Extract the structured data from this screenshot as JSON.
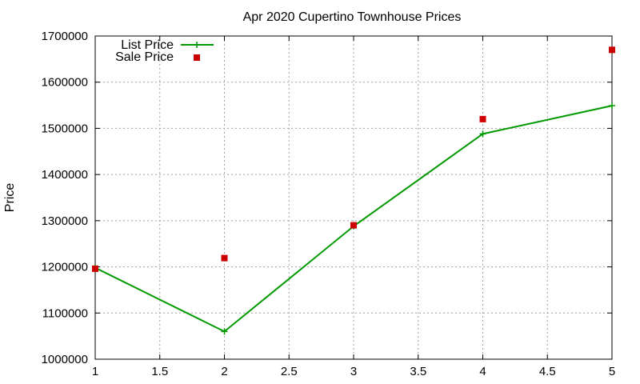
{
  "chart_data": {
    "type": "line",
    "title": "Apr 2020 Cupertino Townhouse Prices",
    "xlabel": "",
    "ylabel": "Price",
    "xlim": [
      1,
      5
    ],
    "ylim": [
      1000000,
      1700000
    ],
    "xticks": [
      1,
      1.5,
      2,
      2.5,
      3,
      3.5,
      4,
      4.5,
      5
    ],
    "xtick_labels": [
      "1",
      "1.5",
      "2",
      "2.5",
      "3",
      "3.5",
      "4",
      "4.5",
      "5"
    ],
    "yticks": [
      1000000,
      1100000,
      1200000,
      1300000,
      1400000,
      1500000,
      1600000,
      1700000
    ],
    "ytick_labels": [
      "1000000",
      "1100000",
      "1200000",
      "1300000",
      "1400000",
      "1500000",
      "1600000",
      "1700000"
    ],
    "grid": true,
    "legend_position": "top-left",
    "series": [
      {
        "name": "List Price",
        "style": "line-with-plus-markers",
        "color": "#009900",
        "x": [
          1,
          2,
          3,
          4,
          5
        ],
        "y": [
          1198000,
          1060000,
          1288000,
          1488000,
          1549000
        ]
      },
      {
        "name": "Sale Price",
        "style": "square-points",
        "color": "#cc0000",
        "x": [
          1,
          2,
          3,
          4,
          5
        ],
        "y": [
          1196000,
          1219000,
          1290000,
          1520000,
          1670000
        ]
      }
    ]
  }
}
